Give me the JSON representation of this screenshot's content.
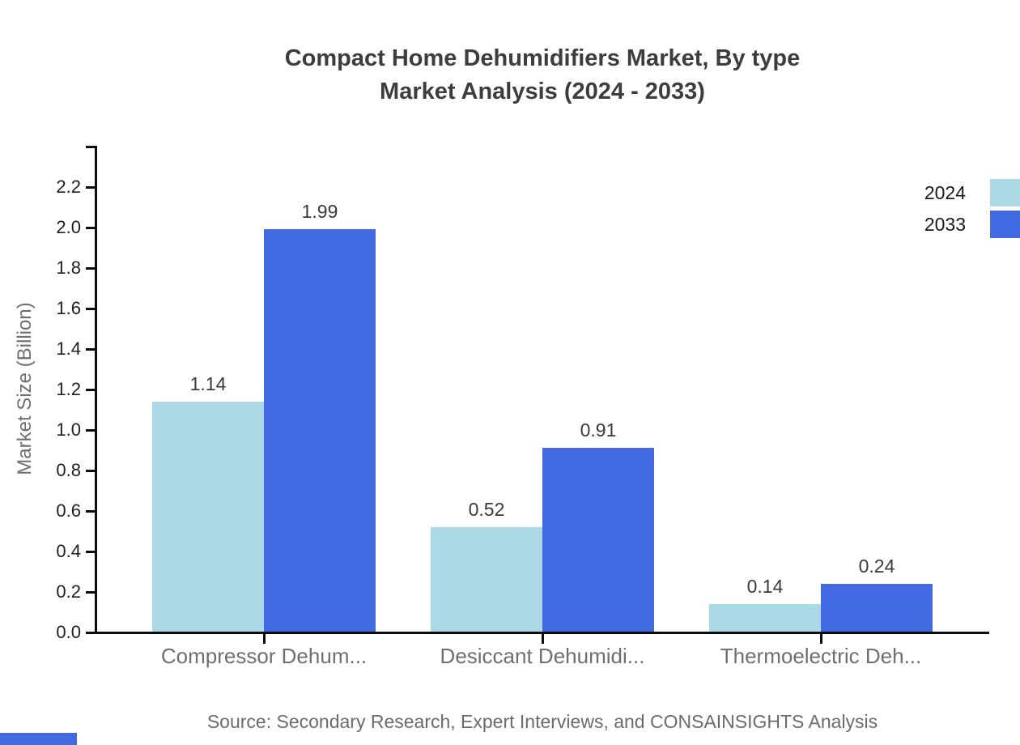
{
  "title": {
    "line1": "Compact Home Dehumidifiers Market, By type",
    "line2": "Market Analysis (2024 - 2033)"
  },
  "legend": {
    "items": [
      {
        "label": "2024",
        "color": "#ADD8E6"
      },
      {
        "label": "2033",
        "color": "#4169E1"
      }
    ],
    "position": "top-right"
  },
  "axes": {
    "y_label": "Market Size (Billion)",
    "y_tick_labels": [
      "0.0",
      "0.2",
      "0.4",
      "0.6",
      "0.8",
      "1.0",
      "1.2",
      "1.4",
      "1.6",
      "1.8",
      "2.0",
      "2.2"
    ]
  },
  "source": "Source: Secondary Research, Expert Interviews, and CONSAINSIGHTS Analysis",
  "colors": {
    "series_2024": "#ADD8E6",
    "series_2033": "#4169E1",
    "axis": "#0d0d0d",
    "title_text": "#3d3d3d",
    "muted_text": "#6f6f6f",
    "footer_mark": "#4169E1"
  },
  "chart_data": {
    "type": "bar",
    "title": "Compact Home Dehumidifiers Market, By type Market Analysis (2024 - 2033)",
    "categories": [
      "Compressor Dehum...",
      "Desiccant Dehumidi...",
      "Thermoelectric Deh..."
    ],
    "series": [
      {
        "name": "2024",
        "color": "#ADD8E6",
        "values": [
          1.14,
          0.52,
          0.14
        ]
      },
      {
        "name": "2033",
        "color": "#4169E1",
        "values": [
          1.99,
          0.91,
          0.24
        ]
      }
    ],
    "value_labels": [
      [
        "1.14",
        "0.52",
        "0.14"
      ],
      [
        "1.99",
        "0.91",
        "0.24"
      ]
    ],
    "xlabel": "",
    "ylabel": "Market Size (Billion)",
    "ylim": [
      0,
      2.4
    ],
    "ytick_step": 0.2,
    "grid": false,
    "legend_position": "top-right"
  }
}
